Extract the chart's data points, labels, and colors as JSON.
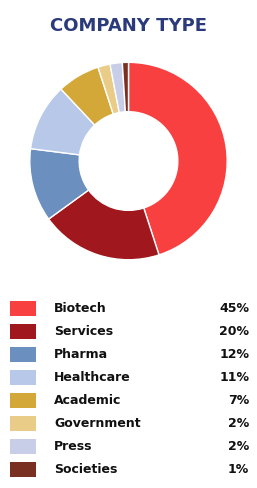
{
  "title": "COMPANY TYPE",
  "title_color": "#2B3A7A",
  "title_fontsize": 13,
  "categories": [
    "Biotech",
    "Services",
    "Pharma",
    "Healthcare",
    "Academic",
    "Government",
    "Press",
    "Societies"
  ],
  "values": [
    45,
    20,
    12,
    11,
    7,
    2,
    2,
    1
  ],
  "percentages": [
    "45%",
    "20%",
    "12%",
    "11%",
    "7%",
    "2%",
    "2%",
    "1%"
  ],
  "colors": [
    "#F94040",
    "#A0181E",
    "#6B8FBF",
    "#B8C8E8",
    "#D4A838",
    "#E8CC88",
    "#C8CDE8",
    "#7A3020"
  ],
  "background_color": "#FFFFFF",
  "legend_fontsize": 9,
  "donut_hole": 0.5
}
